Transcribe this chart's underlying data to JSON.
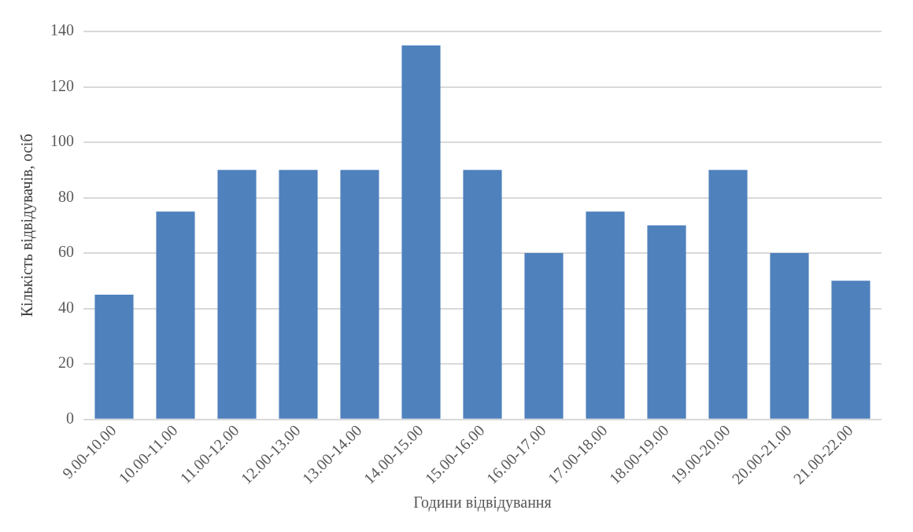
{
  "chart_data": {
    "type": "bar",
    "xlabel": "Години відвідування",
    "ylabel": "Кількість відвідувачів, осіб",
    "categories": [
      "9.00-10.00",
      "10.00-11.00",
      "11.00-12.00",
      "12.00-13.00",
      "13.00-14.00",
      "14.00-15.00",
      "15.00-16.00",
      "16.00-17.00",
      "17.00-18.00",
      "18.00-19.00",
      "19.00-20.00",
      "20.00-21.00",
      "21.00-22.00"
    ],
    "values": [
      45,
      75,
      90,
      90,
      90,
      135,
      90,
      60,
      75,
      70,
      90,
      60,
      50
    ],
    "color": "#4f81bd",
    "ylim": [
      0,
      140
    ],
    "yticks": [
      0,
      20,
      40,
      60,
      80,
      100,
      120,
      140
    ],
    "grid": "y",
    "legend": false
  }
}
